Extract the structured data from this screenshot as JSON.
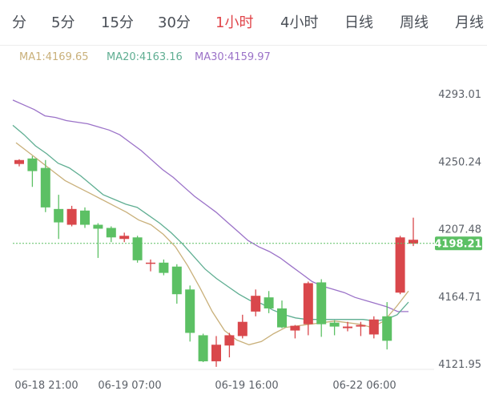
{
  "tabs": [
    "分",
    "5分",
    "15分",
    "30分",
    "1小时",
    "4小时",
    "日线",
    "周线",
    "月线"
  ],
  "active_tab": "1小时",
  "indicators": {
    "ma1": "MA1:4169.65",
    "ma20": "MA20:4163.16",
    "ma30": "MA30:4159.97"
  },
  "colors": {
    "up": "#d9474b",
    "down": "#5cc064",
    "ma1": "#c9b07a",
    "ma20": "#5fae92",
    "ma30": "#9b72c8",
    "active_tab": "#e0454a",
    "price_tag_bg": "#5cc064"
  },
  "chart_data": {
    "type": "candlestick",
    "y_ticks": [
      "4293.01",
      "4250.24",
      "4207.48",
      "4164.71",
      "4121.95"
    ],
    "x_ticks": [
      "06-18 21:00",
      "06-19 07:00",
      "06-19 16:00",
      "06-22 06:00"
    ],
    "current_price": "4198.21",
    "ylim": [
      4121.95,
      4293.01
    ],
    "candles": [
      {
        "o": 4248.5,
        "h": 4251.5,
        "l": 4247.0,
        "c": 4251.0
      },
      {
        "o": 4252.0,
        "h": 4253.5,
        "l": 4234.0,
        "c": 4244.0
      },
      {
        "o": 4246.0,
        "h": 4251.0,
        "l": 4218.0,
        "c": 4221.0
      },
      {
        "o": 4220.0,
        "h": 4229.0,
        "l": 4201.0,
        "c": 4211.5
      },
      {
        "o": 4210.0,
        "h": 4222.0,
        "l": 4209.0,
        "c": 4220.0
      },
      {
        "o": 4219.0,
        "h": 4221.0,
        "l": 4208.0,
        "c": 4210.0
      },
      {
        "o": 4210.0,
        "h": 4211.0,
        "l": 4189.0,
        "c": 4207.5
      },
      {
        "o": 4208.0,
        "h": 4209.0,
        "l": 4199.0,
        "c": 4202.0
      },
      {
        "o": 4201.0,
        "h": 4205.0,
        "l": 4199.0,
        "c": 4203.0
      },
      {
        "o": 4202.0,
        "h": 4203.0,
        "l": 4186.0,
        "c": 4187.5
      },
      {
        "o": 4186.0,
        "h": 4188.0,
        "l": 4180.5,
        "c": 4186.0
      },
      {
        "o": 4186.0,
        "h": 4188.0,
        "l": 4178.0,
        "c": 4179.5
      },
      {
        "o": 4183.5,
        "h": 4185.0,
        "l": 4160.0,
        "c": 4166.0
      },
      {
        "o": 4169.0,
        "h": 4171.5,
        "l": 4136.0,
        "c": 4141.5
      },
      {
        "o": 4140.0,
        "h": 4141.0,
        "l": 4123.0,
        "c": 4123.5
      },
      {
        "o": 4123.5,
        "h": 4139.5,
        "l": 4120.0,
        "c": 4134.0
      },
      {
        "o": 4133.5,
        "h": 4141.5,
        "l": 4126.0,
        "c": 4140.0
      },
      {
        "o": 4139.5,
        "h": 4153.0,
        "l": 4138.0,
        "c": 4148.5
      },
      {
        "o": 4155.0,
        "h": 4169.0,
        "l": 4152.0,
        "c": 4165.0
      },
      {
        "o": 4164.0,
        "h": 4168.0,
        "l": 4154.0,
        "c": 4157.0
      },
      {
        "o": 4157.0,
        "h": 4162.0,
        "l": 4144.5,
        "c": 4145.0
      },
      {
        "o": 4143.0,
        "h": 4146.5,
        "l": 4138.0,
        "c": 4146.0
      },
      {
        "o": 4147.0,
        "h": 4174.0,
        "l": 4140.0,
        "c": 4173.0
      },
      {
        "o": 4173.5,
        "h": 4175.5,
        "l": 4139.0,
        "c": 4147.0
      },
      {
        "o": 4148.0,
        "h": 4149.5,
        "l": 4140.0,
        "c": 4145.5
      },
      {
        "o": 4144.5,
        "h": 4148.5,
        "l": 4142.5,
        "c": 4145.5
      },
      {
        "o": 4145.5,
        "h": 4148.5,
        "l": 4139.5,
        "c": 4146.5
      },
      {
        "o": 4140.5,
        "h": 4152.0,
        "l": 4138.0,
        "c": 4150.0
      },
      {
        "o": 4152.0,
        "h": 4161.0,
        "l": 4131.0,
        "c": 4136.5
      },
      {
        "o": 4167.0,
        "h": 4203.0,
        "l": 4166.0,
        "c": 4202.0
      },
      {
        "o": 4198.0,
        "h": 4214.5,
        "l": 4196.5,
        "c": 4200.5
      }
    ],
    "ma1": [
      4262,
      4256,
      4250,
      4244,
      4238,
      4234,
      4230,
      4226,
      4222,
      4218,
      4213,
      4210,
      4204,
      4196,
      4184,
      4170,
      4155,
      4143,
      4137,
      4134,
      4136,
      4141,
      4145,
      4146,
      4147,
      4148,
      4149,
      4148,
      4147,
      4145,
      4149,
      4158,
      4168
    ],
    "ma20": [
      4273,
      4267,
      4260,
      4255,
      4249,
      4246,
      4241,
      4235,
      4229,
      4226,
      4223,
      4221,
      4216,
      4211,
      4205,
      4198,
      4190,
      4182,
      4176,
      4171,
      4166,
      4162,
      4160,
      4156,
      4153,
      4151,
      4150,
      4150,
      4150,
      4150,
      4150,
      4150,
      4149,
      4150,
      4153,
      4161
    ],
    "ma30": [
      4289,
      4286,
      4283,
      4279,
      4278,
      4276,
      4275,
      4274,
      4272,
      4270,
      4267,
      4262,
      4257,
      4251,
      4245,
      4240,
      4234,
      4228,
      4223,
      4218,
      4212,
      4206,
      4200,
      4196,
      4193,
      4189,
      4184,
      4179,
      4174,
      4171,
      4169,
      4167,
      4164,
      4162,
      4160,
      4158,
      4155,
      4155
    ]
  }
}
